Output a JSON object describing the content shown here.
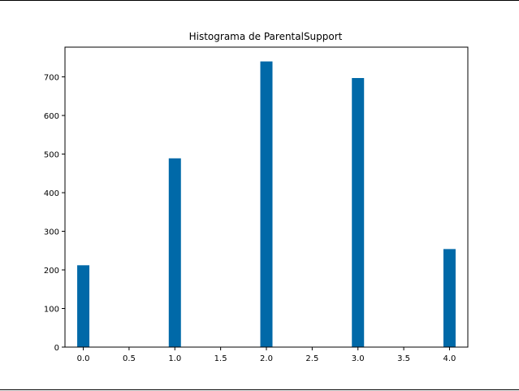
{
  "chart_data": {
    "type": "bar",
    "title": "Histograma de ParentalSupport",
    "xlabel": "",
    "ylabel": "",
    "x": [
      0.0,
      1.0,
      2.0,
      3.0,
      4.0
    ],
    "values": [
      212,
      489,
      740,
      697,
      254
    ],
    "bar_width": 0.133,
    "xlim": [
      -0.2,
      4.2
    ],
    "ylim": [
      0,
      777
    ],
    "xticks": [
      0.0,
      0.5,
      1.0,
      1.5,
      2.0,
      2.5,
      3.0,
      3.5,
      4.0
    ],
    "xtick_labels": [
      "0.0",
      "0.5",
      "1.0",
      "1.5",
      "2.0",
      "2.5",
      "3.0",
      "3.5",
      "4.0"
    ],
    "yticks": [
      0,
      100,
      200,
      300,
      400,
      500,
      600,
      700
    ],
    "ytick_labels": [
      "0",
      "100",
      "200",
      "300",
      "400",
      "500",
      "600",
      "700"
    ],
    "grid": false,
    "legend": "none",
    "bar_color": "#0069a8"
  }
}
